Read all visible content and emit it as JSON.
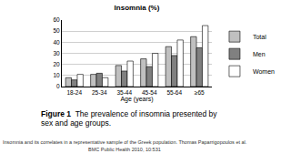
{
  "chart_data": {
    "type": "bar",
    "title": "Insomnia (%)",
    "x_label": "Age (years)",
    "categories": [
      "18-24",
      "25-34",
      "35-44",
      "45-54",
      "55-64",
      "≥65"
    ],
    "series": [
      {
        "name": "Total",
        "color": "#c0c0c0",
        "values": [
          8,
          11,
          19,
          25,
          36,
          45
        ]
      },
      {
        "name": "Men",
        "color": "#808080",
        "values": [
          6,
          12,
          14,
          18,
          28,
          35
        ]
      },
      {
        "name": "Women",
        "color": "#ffffff",
        "values": [
          11,
          8,
          23,
          30,
          42,
          55
        ]
      }
    ],
    "ylim": [
      0,
      60
    ],
    "yticks": [
      0,
      10,
      20,
      30,
      40,
      50,
      60
    ],
    "grid": true,
    "legend": "right",
    "figure_label": "Figure 1",
    "caption": [
      "The prevalence of insomnia presented by",
      "sex and age groups."
    ],
    "citation": [
      "Insomnia and its correlates in a representative sample of the Greek population. Thomas Paparrigopoulos et al.",
      "BMC Public Health 2010, 10:531"
    ]
  }
}
